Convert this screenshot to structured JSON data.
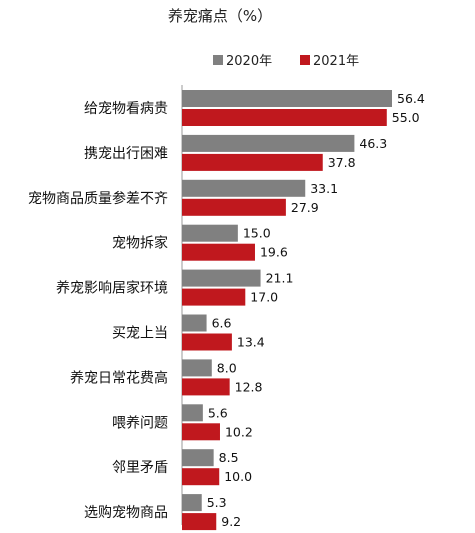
{
  "chart_data": {
    "type": "bar",
    "orientation": "horizontal",
    "title": "养宠痛点（%）",
    "categories": [
      "给宠物看病贵",
      "携宠出行困难",
      "宠物商品质量参差不齐",
      "宠物拆家",
      "养宠影响居家环境",
      "买宠上当",
      "养宠日常花费高",
      "喂养问题",
      "邻里矛盾",
      "选购宠物商品"
    ],
    "series": [
      {
        "name": "2020年",
        "color": "#808080",
        "values": [
          56.4,
          46.3,
          33.1,
          15.0,
          21.1,
          6.6,
          8.0,
          5.6,
          8.5,
          5.3
        ]
      },
      {
        "name": "2021年",
        "color": "#c0181e",
        "values": [
          55.0,
          37.8,
          27.9,
          19.6,
          17.0,
          13.4,
          12.8,
          10.2,
          10.0,
          9.2
        ]
      }
    ],
    "value_labels": [
      [
        "56.4",
        "46.3",
        "33.1",
        "15.0",
        "21.1",
        "6.6",
        "8.0",
        "5.6",
        "8.5",
        "5.3"
      ],
      [
        "55.0",
        "37.8",
        "27.9",
        "19.6",
        "17.0",
        "13.4",
        "12.8",
        "10.2",
        "10.0",
        "9.2"
      ]
    ],
    "xlim": [
      0,
      60
    ],
    "legend_position": "top-right",
    "grid": false
  }
}
